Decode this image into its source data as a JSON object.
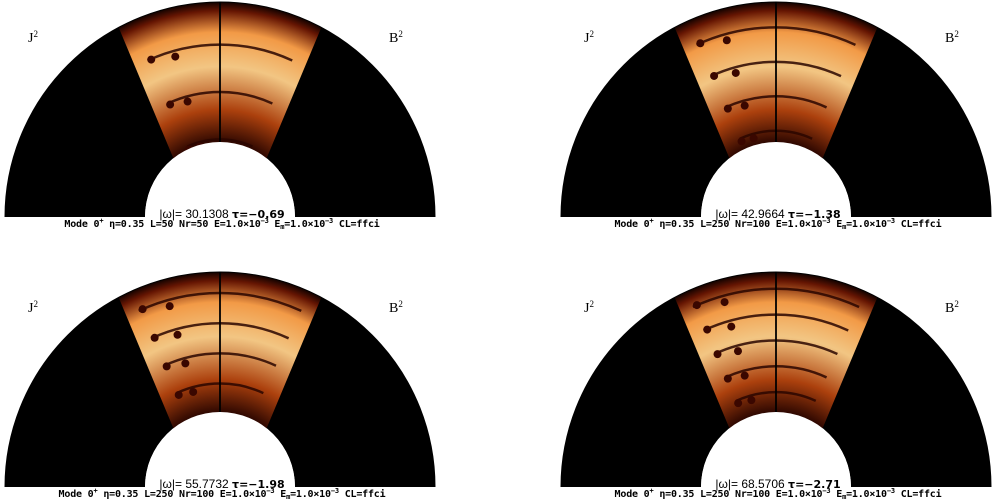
{
  "colors": {
    "background": "#000000",
    "hot_low": "#3a0800",
    "hot_mid": "#c2410c",
    "hot_high": "#fff5e0"
  },
  "panels": [
    {
      "left_label": {
        "base": "J",
        "exp": "2"
      },
      "right_label": {
        "base": "B",
        "exp": "2"
      },
      "omega": {
        "prefix": "|ω|=",
        "value": "30.1308",
        "tau": "τ=−0.69"
      },
      "params": {
        "mode": "Mode 0",
        "mode_sup": "+",
        "eta": "η=0.35",
        "L": "L=50",
        "Nr": "Nr=50",
        "E": "E=1.0×10",
        "E_exp": "−3",
        "Em_base": "E",
        "Em_sub": "m",
        "Em_val": "=1.0×10",
        "Em_exp": "−3",
        "CL": "CL=ffci"
      }
    },
    {
      "left_label": {
        "base": "J",
        "exp": "2"
      },
      "right_label": {
        "base": "B",
        "exp": "2"
      },
      "omega": {
        "prefix": "|ω|=",
        "value": "42.9664",
        "tau": "τ=−1.38"
      },
      "params": {
        "mode": "Mode 0",
        "mode_sup": "+",
        "eta": "η=0.35",
        "L": "L=250",
        "Nr": "Nr=100",
        "E": "E=1.0×10",
        "E_exp": "−3",
        "Em_base": "E",
        "Em_sub": "m",
        "Em_val": "=1.0×10",
        "Em_exp": "−3",
        "CL": "CL=ffci"
      }
    },
    {
      "left_label": {
        "base": "J",
        "exp": "2"
      },
      "right_label": {
        "base": "B",
        "exp": "2"
      },
      "omega": {
        "prefix": "|ω|=",
        "value": "55.7732",
        "tau": "τ=−1.98"
      },
      "params": {
        "mode": "Mode 0",
        "mode_sup": "+",
        "eta": "η=0.35",
        "L": "L=250",
        "Nr": "Nr=100",
        "E": "E=1.0×10",
        "E_exp": "−3",
        "Em_base": "E",
        "Em_sub": "m",
        "Em_val": "=1.0×10",
        "Em_exp": "−3",
        "CL": "CL=ffci"
      }
    },
    {
      "left_label": {
        "base": "J",
        "exp": "2"
      },
      "right_label": {
        "base": "B",
        "exp": "2"
      },
      "omega": {
        "prefix": "|ω|=",
        "value": "68.5706",
        "tau": "τ=−2.71"
      },
      "params": {
        "mode": "Mode 0",
        "mode_sup": "+",
        "eta": "η=0.35",
        "L": "L=250",
        "Nr": "Nr=100",
        "E": "E=1.0×10",
        "E_exp": "−3",
        "Em_base": "E",
        "Em_sub": "m",
        "Em_val": "=1.0×10",
        "Em_exp": "−3",
        "CL": "CL=ffci"
      }
    }
  ]
}
